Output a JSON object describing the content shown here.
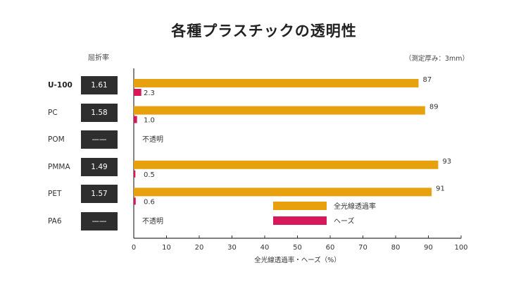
{
  "chart_data": {
    "type": "bar",
    "orientation": "horizontal",
    "title": "各種プラスチックの透明性",
    "note": "（測定厚み：3mm）",
    "xlabel": "全光線透過率・ヘーズ（%）",
    "xlim": [
      0,
      100
    ],
    "xticks": [
      0,
      10,
      20,
      30,
      40,
      50,
      60,
      70,
      80,
      90,
      100
    ],
    "refractive_index_header": "屈折率",
    "categories": [
      "U-100",
      "PC",
      "POM",
      "PMMA",
      "PET",
      "PA6"
    ],
    "refractive_index": [
      "1.61",
      "1.58",
      "——",
      "1.49",
      "1.57",
      "——"
    ],
    "opaque_label": "不透明",
    "series": [
      {
        "name": "全光線透過率",
        "color": "#e8a10e",
        "values": [
          87,
          89,
          null,
          93,
          91,
          null
        ]
      },
      {
        "name": "ヘーズ",
        "color": "#d6175a",
        "values": [
          2.3,
          1.0,
          null,
          0.5,
          0.6,
          null
        ]
      }
    ],
    "value_labels": {
      "transmittance": [
        "87",
        "89",
        "",
        "93",
        "91",
        ""
      ],
      "haze": [
        "2.3",
        "1.0",
        "",
        "0.5",
        "0.6",
        ""
      ]
    }
  }
}
